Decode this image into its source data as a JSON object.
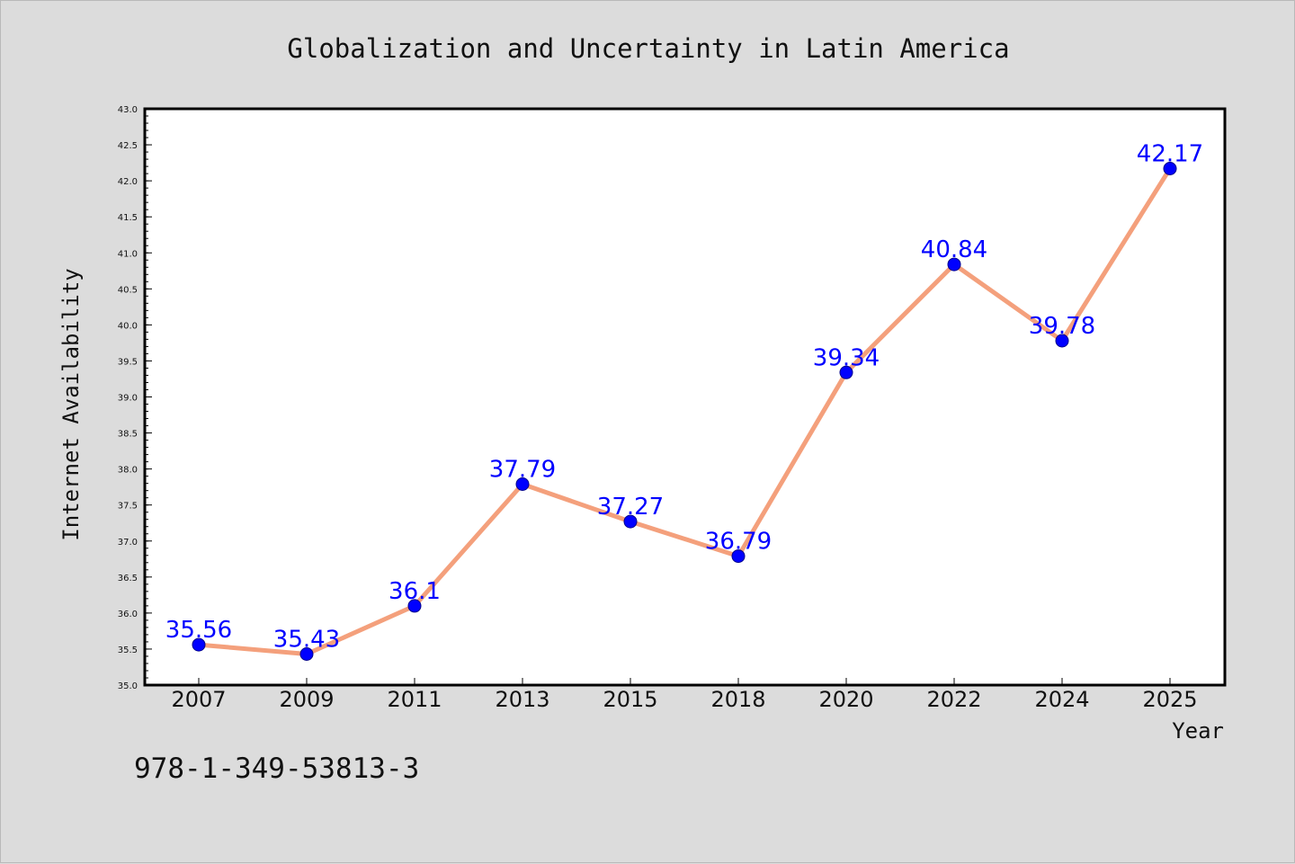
{
  "chart_data": {
    "type": "line",
    "title": "Globalization and Uncertainty in Latin America",
    "xlabel": "Year",
    "ylabel": "Internet Availability",
    "categories": [
      "2007",
      "2009",
      "2011",
      "2013",
      "2015",
      "2018",
      "2020",
      "2022",
      "2024",
      "2025"
    ],
    "values": [
      35.56,
      35.43,
      36.1,
      37.79,
      37.27,
      36.79,
      39.34,
      40.84,
      39.78,
      42.17
    ],
    "data_labels": [
      "35.56",
      "35.43",
      "36.1",
      "37.79",
      "37.27",
      "36.79",
      "39.34",
      "40.84",
      "39.78",
      "42.17"
    ],
    "ylim": [
      35.0,
      43.0
    ],
    "yticks": [
      "35.0",
      "35.5",
      "36.0",
      "36.5",
      "37.0",
      "37.5",
      "38.0",
      "38.5",
      "39.0",
      "39.5",
      "40.0",
      "40.5",
      "41.0",
      "41.5",
      "42.0",
      "42.5",
      "43.0"
    ],
    "grid": false,
    "line_color": "#f4a07c",
    "marker_color": "#0000ff",
    "label_color": "#0000ff",
    "background_color": "#dcdcdc",
    "plot_background_color": "#ffffff"
  },
  "footer": {
    "code": "978-1-349-53813-3"
  }
}
